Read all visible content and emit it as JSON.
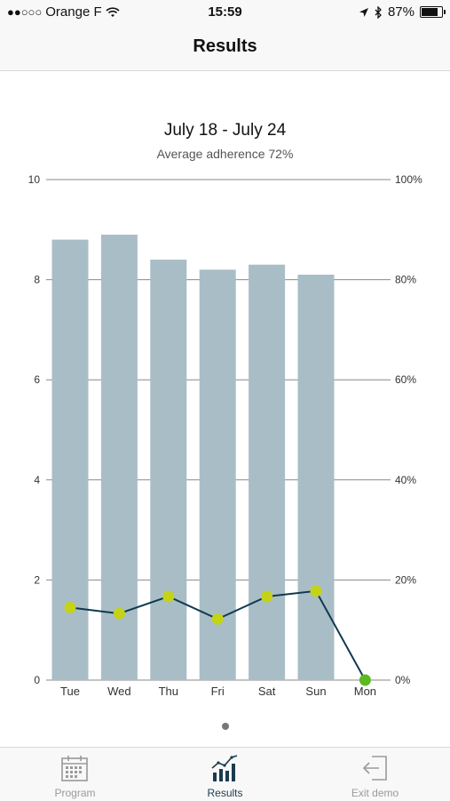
{
  "status_bar": {
    "signal": "●●○○○",
    "carrier": "Orange F",
    "time": "15:59",
    "battery": "87%",
    "battery_level": 0.87,
    "icons": [
      "wifi-icon",
      "location-arrow-icon",
      "bluetooth-icon",
      "battery-icon"
    ]
  },
  "nav": {
    "title": "Results"
  },
  "chart_data": {
    "type": "bar",
    "title": "July 18 - July 24",
    "subtitle": "Average adherence 72%",
    "categories": [
      "Tue",
      "Wed",
      "Thu",
      "Fri",
      "Sat",
      "Sun",
      "Mon"
    ],
    "series": [
      {
        "kind": "bar",
        "axis": "left",
        "values": [
          8.8,
          8.9,
          8.4,
          8.2,
          8.3,
          8.1,
          0
        ],
        "color": "#a9bdc6"
      },
      {
        "kind": "line",
        "axis": "left",
        "values": [
          1.45,
          1.33,
          1.67,
          1.22,
          1.67,
          1.78,
          0
        ],
        "color": "#0e3a4f",
        "marker_color": "#c5d317",
        "last_marker_color": "#5db922"
      }
    ],
    "y_left": {
      "min": 0,
      "max": 10,
      "ticks": [
        "0",
        "2",
        "4",
        "6",
        "8",
        "10"
      ]
    },
    "y_right": {
      "min": 0,
      "max": 100,
      "ticks": [
        "0%",
        "20%",
        "40%",
        "60%",
        "80%",
        "100%"
      ]
    },
    "grid": true
  },
  "page_indicator": {
    "current": 1,
    "total": 1
  },
  "tabs": [
    {
      "label": "Program",
      "icon": "calendar-icon",
      "active": false
    },
    {
      "label": "Results",
      "icon": "bar-chart-icon",
      "active": true
    },
    {
      "label": "Exit demo",
      "icon": "exit-icon",
      "active": false
    }
  ]
}
